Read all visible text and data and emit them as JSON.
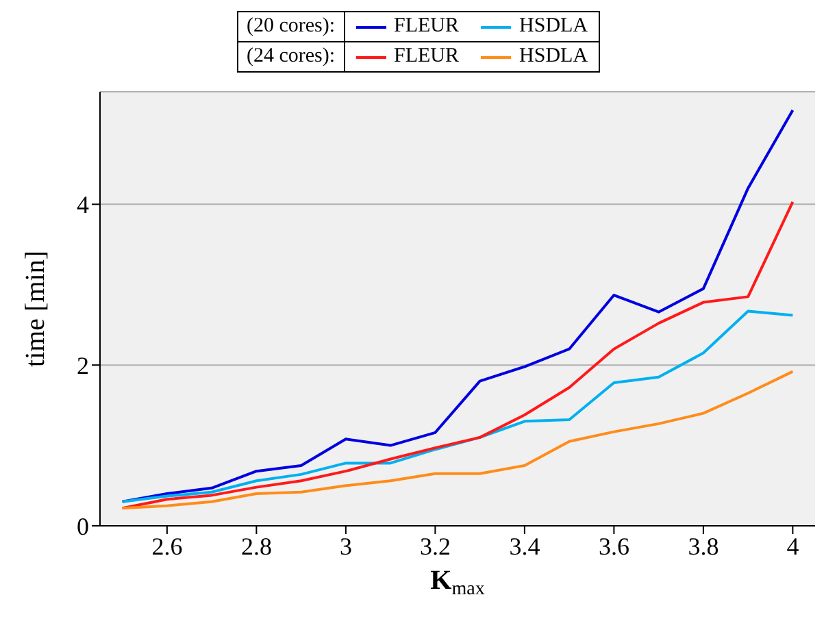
{
  "chart_data": {
    "type": "line",
    "xlabel": "K$_{max}$",
    "ylabel": "time [min]",
    "x": [
      2.5,
      2.6,
      2.7,
      2.8,
      2.9,
      3.0,
      3.1,
      3.2,
      3.3,
      3.4,
      3.5,
      3.6,
      3.7,
      3.8,
      3.9,
      4.0
    ],
    "series": [
      {
        "name": "FLEUR",
        "color": "#0000e0",
        "values": [
          0.3,
          0.4,
          0.47,
          0.68,
          0.75,
          1.08,
          1.0,
          1.16,
          1.8,
          1.98,
          2.2,
          2.87,
          2.66,
          2.95,
          4.2,
          5.17
        ]
      },
      {
        "name": "HSDLA",
        "color": "#00b0f0",
        "values": [
          0.3,
          0.37,
          0.42,
          0.56,
          0.64,
          0.78,
          0.78,
          0.95,
          1.1,
          1.3,
          1.32,
          1.78,
          1.85,
          2.15,
          2.67,
          2.62
        ]
      },
      {
        "name": "FLEUR",
        "color": "#ff1a1a",
        "values": [
          0.22,
          0.33,
          0.38,
          0.48,
          0.56,
          0.68,
          0.83,
          0.97,
          1.1,
          1.38,
          1.72,
          2.2,
          2.52,
          2.78,
          2.85,
          4.03
        ]
      },
      {
        "name": "HSDLA",
        "color": "#ff8c1a",
        "values": [
          0.22,
          0.25,
          0.3,
          0.4,
          0.42,
          0.5,
          0.56,
          0.65,
          0.65,
          0.75,
          1.05,
          1.17,
          1.27,
          1.4,
          1.65,
          1.92
        ]
      }
    ],
    "annotations": [
      "(20 cores):",
      "(24 cores):"
    ],
    "xlim": [
      2.45,
      4.05
    ],
    "xticks": [
      2.6,
      2.8,
      3,
      3.2,
      3.4,
      3.6,
      3.8,
      4
    ],
    "ylim": [
      0,
      5.4
    ],
    "yticks": [
      0,
      2,
      4
    ],
    "grid": "y",
    "legend": "top",
    "marker": "none",
    "line_style": "solid"
  }
}
